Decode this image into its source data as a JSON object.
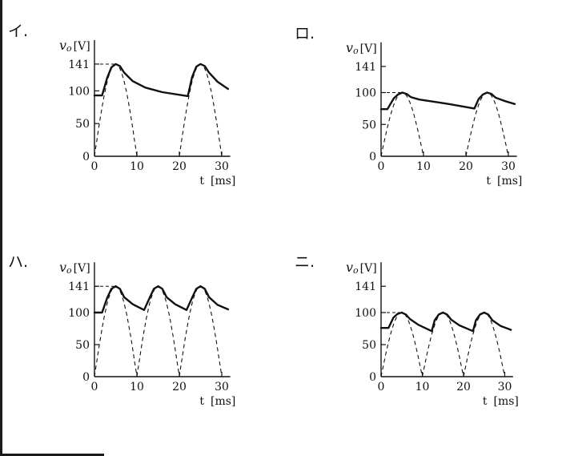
{
  "charts": [
    {
      "choice": "イ.",
      "ylabel_var": "v",
      "ylabel_sub": "o",
      "ylabel_unit": "[V]",
      "xlabel": "t",
      "xlabel_unit": "[ms]",
      "yticks": [
        "0",
        "50",
        "100",
        "141"
      ],
      "xticks": [
        "0",
        "10",
        "20",
        "30"
      ]
    },
    {
      "choice": "ロ.",
      "ylabel_var": "v",
      "ylabel_sub": "o",
      "ylabel_unit": "[V]",
      "xlabel": "t",
      "xlabel_unit": "[ms]",
      "yticks": [
        "0",
        "50",
        "100",
        "141"
      ],
      "xticks": [
        "0",
        "10",
        "20",
        "30"
      ]
    },
    {
      "choice": "ハ.",
      "ylabel_var": "v",
      "ylabel_sub": "o",
      "ylabel_unit": "[V]",
      "xlabel": "t",
      "xlabel_unit": "[ms]",
      "yticks": [
        "0",
        "50",
        "100",
        "141"
      ],
      "xticks": [
        "0",
        "10",
        "20",
        "30"
      ]
    },
    {
      "choice": "ニ.",
      "ylabel_var": "v",
      "ylabel_sub": "o",
      "ylabel_unit": "[V]",
      "xlabel": "t",
      "xlabel_unit": "[ms]",
      "yticks": [
        "0",
        "50",
        "100",
        "141"
      ],
      "xticks": [
        "0",
        "10",
        "20",
        "30"
      ]
    }
  ],
  "chart_data": [
    {
      "type": "line",
      "xlim": [
        0,
        32
      ],
      "ylim": [
        0,
        141
      ],
      "y_ticks": [
        0,
        50,
        100,
        141
      ],
      "x_ticks": [
        0,
        10,
        20,
        30
      ],
      "dashed_source": {
        "amplitude": 141,
        "period_ms": 20,
        "half_periods": [
          [
            0,
            10
          ],
          [
            20,
            30
          ]
        ]
      },
      "dashed_peak_reference": 141,
      "output": {
        "x": [
          0,
          1.8,
          3.0,
          4.0,
          5.0,
          6.0,
          7.0,
          9.0,
          12.0,
          16.0,
          22.0,
          23.0,
          24.0,
          25.0,
          26.0,
          27.0,
          29.0,
          31.5
        ],
        "y": [
          93,
          93,
          120,
          136,
          141,
          138,
          128,
          115,
          105,
          98,
          92,
          121,
          137,
          141,
          138,
          128,
          114,
          103
        ]
      }
    },
    {
      "type": "line",
      "xlim": [
        0,
        32
      ],
      "ylim": [
        0,
        141
      ],
      "y_ticks": [
        0,
        50,
        100,
        141
      ],
      "x_ticks": [
        0,
        10,
        20,
        30
      ],
      "dashed_source": {
        "amplitude": 100,
        "period_ms": 20,
        "half_periods": [
          [
            0,
            10
          ],
          [
            20,
            30
          ]
        ]
      },
      "dashed_peak_reference": 100,
      "output": {
        "x": [
          0,
          1.5,
          3.0,
          4.0,
          5.0,
          6.0,
          7.0,
          9.0,
          12.0,
          16.0,
          22.0,
          23.0,
          24.0,
          25.0,
          26.0,
          27.0,
          29.0,
          31.5
        ],
        "y": [
          74,
          74,
          91,
          97,
          100,
          98,
          93,
          89,
          86,
          82,
          75,
          90,
          97,
          100,
          98,
          92,
          87,
          82
        ]
      }
    },
    {
      "type": "line",
      "xlim": [
        0,
        32
      ],
      "ylim": [
        0,
        141
      ],
      "y_ticks": [
        0,
        50,
        100,
        141
      ],
      "x_ticks": [
        0,
        10,
        20,
        30
      ],
      "dashed_source": {
        "amplitude": 141,
        "period_ms": 10,
        "half_periods": [
          [
            0,
            10
          ],
          [
            10,
            20
          ],
          [
            20,
            30
          ]
        ]
      },
      "dashed_peak_reference": 141,
      "output": {
        "x": [
          0,
          1.8,
          3.0,
          4.0,
          5.0,
          6.0,
          7.0,
          9.0,
          11.7,
          13.0,
          14.0,
          15.0,
          16.0,
          17.0,
          19.0,
          21.7,
          23.0,
          24.0,
          25.0,
          26.0,
          27.0,
          29.0,
          31.5
        ],
        "y": [
          100,
          100,
          123,
          137,
          141,
          137,
          124,
          113,
          104,
          123,
          137,
          141,
          137,
          124,
          113,
          104,
          123,
          137,
          141,
          137,
          124,
          112,
          105
        ]
      }
    },
    {
      "type": "line",
      "xlim": [
        0,
        32
      ],
      "ylim": [
        0,
        141
      ],
      "y_ticks": [
        0,
        50,
        100,
        141
      ],
      "x_ticks": [
        0,
        10,
        20,
        30
      ],
      "dashed_source": {
        "amplitude": 100,
        "period_ms": 10,
        "half_periods": [
          [
            0,
            10
          ],
          [
            10,
            20
          ],
          [
            20,
            30
          ]
        ]
      },
      "dashed_peak_reference": 100,
      "output": {
        "x": [
          0,
          1.8,
          3.0,
          4.0,
          5.0,
          6.0,
          7.0,
          9.0,
          12.3,
          13.0,
          14.0,
          15.0,
          16.0,
          17.0,
          19.0,
          22.3,
          23.0,
          24.0,
          25.0,
          26.0,
          27.0,
          29.0,
          31.5
        ],
        "y": [
          76,
          76,
          92,
          98,
          100,
          97,
          90,
          81,
          71,
          88,
          97,
          100,
          97,
          89,
          80,
          71,
          88,
          97,
          100,
          97,
          88,
          79,
          73
        ]
      }
    }
  ]
}
